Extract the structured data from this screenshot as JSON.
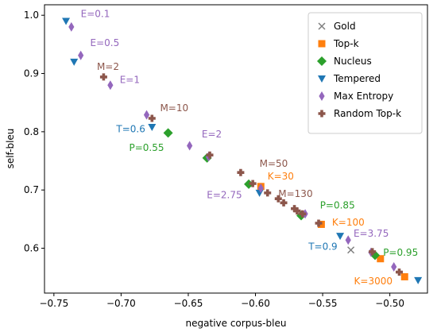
{
  "chart_data": {
    "type": "scatter",
    "xlabel": "negative corpus-bleu",
    "ylabel": "self-bleu",
    "xlim": [
      -0.757,
      -0.472
    ],
    "ylim": [
      0.523,
      1.018
    ],
    "xticks": [
      -0.75,
      -0.7,
      -0.65,
      -0.6,
      -0.55,
      -0.5
    ],
    "xtick_labels": [
      "−0.75",
      "−0.70",
      "−0.65",
      "−0.60",
      "−0.55",
      "−0.50"
    ],
    "yticks": [
      0.6,
      0.7,
      0.8,
      0.9,
      1.0
    ],
    "ytick_labels": [
      "0.6",
      "0.7",
      "0.8",
      "0.9",
      "1.0"
    ],
    "grid": false,
    "legend_position": "top-right",
    "series": [
      {
        "name": "Gold",
        "marker": "x",
        "color": "#7f7f7f",
        "points": [
          [
            -0.529,
            0.597
          ]
        ]
      },
      {
        "name": "Top-k",
        "marker": "square",
        "color": "#ff7f0e",
        "points": [
          [
            -0.596,
            0.706
          ],
          [
            -0.551,
            0.641
          ],
          [
            -0.507,
            0.582
          ],
          [
            -0.489,
            0.551
          ]
        ]
      },
      {
        "name": "Nucleus",
        "marker": "diamond",
        "color": "#2ca02c",
        "points": [
          [
            -0.665,
            0.798
          ],
          [
            -0.636,
            0.755
          ],
          [
            -0.605,
            0.71
          ],
          [
            -0.566,
            0.656
          ],
          [
            -0.511,
            0.588
          ]
        ]
      },
      {
        "name": "Tempered",
        "marker": "triangle-down",
        "color": "#1f77b4",
        "points": [
          [
            -0.741,
            0.99
          ],
          [
            -0.735,
            0.92
          ],
          [
            -0.677,
            0.808
          ],
          [
            -0.597,
            0.695
          ],
          [
            -0.537,
            0.621
          ],
          [
            -0.479,
            0.545
          ]
        ]
      },
      {
        "name": "Max Entropy",
        "marker": "thin-diamond",
        "color": "#9467bd",
        "points": [
          [
            -0.737,
            0.98
          ],
          [
            -0.73,
            0.931
          ],
          [
            -0.708,
            0.88
          ],
          [
            -0.681,
            0.829
          ],
          [
            -0.649,
            0.776
          ],
          [
            -0.635,
            0.757
          ],
          [
            -0.596,
            0.703
          ],
          [
            -0.563,
            0.659
          ],
          [
            -0.531,
            0.614
          ],
          [
            -0.514,
            0.593
          ],
          [
            -0.497,
            0.568
          ]
        ]
      },
      {
        "name": "Random Top-k",
        "marker": "plus",
        "color": "#8c564b",
        "points": [
          [
            -0.713,
            0.894
          ],
          [
            -0.677,
            0.823
          ],
          [
            -0.634,
            0.76
          ],
          [
            -0.611,
            0.73
          ],
          [
            -0.602,
            0.711
          ],
          [
            -0.591,
            0.695
          ],
          [
            -0.583,
            0.685
          ],
          [
            -0.579,
            0.678
          ],
          [
            -0.571,
            0.668
          ],
          [
            -0.569,
            0.664
          ],
          [
            -0.565,
            0.659
          ],
          [
            -0.553,
            0.643
          ],
          [
            -0.513,
            0.594
          ],
          [
            -0.493,
            0.559
          ]
        ]
      }
    ],
    "annotations": [
      {
        "text": "E=0.1",
        "x": -0.73,
        "y": 0.997,
        "color": "#9467bd",
        "anchor": "start"
      },
      {
        "text": "E=0.5",
        "x": -0.723,
        "y": 0.947,
        "color": "#9467bd",
        "anchor": "start"
      },
      {
        "text": "M=2",
        "x": -0.718,
        "y": 0.906,
        "color": "#8c564b",
        "anchor": "start"
      },
      {
        "text": "E=1",
        "x": -0.701,
        "y": 0.884,
        "color": "#9467bd",
        "anchor": "start"
      },
      {
        "text": "M=10",
        "x": -0.671,
        "y": 0.835,
        "color": "#8c564b",
        "anchor": "start"
      },
      {
        "text": "T=0.6",
        "x": -0.682,
        "y": 0.799,
        "color": "#1f77b4",
        "anchor": "end"
      },
      {
        "text": "P=0.55",
        "x": -0.668,
        "y": 0.767,
        "color": "#2ca02c",
        "anchor": "end"
      },
      {
        "text": "E=2",
        "x": -0.64,
        "y": 0.79,
        "color": "#9467bd",
        "anchor": "start"
      },
      {
        "text": "M=50",
        "x": -0.597,
        "y": 0.74,
        "color": "#8c564b",
        "anchor": "start"
      },
      {
        "text": "K=30",
        "x": -0.591,
        "y": 0.718,
        "color": "#ff7f0e",
        "anchor": "start"
      },
      {
        "text": "E=2.75",
        "x": -0.61,
        "y": 0.686,
        "color": "#9467bd",
        "anchor": "end"
      },
      {
        "text": "M=130",
        "x": -0.583,
        "y": 0.688,
        "color": "#8c564b",
        "anchor": "start"
      },
      {
        "text": "P=0.85",
        "x": -0.552,
        "y": 0.668,
        "color": "#2ca02c",
        "anchor": "start"
      },
      {
        "text": "K=100",
        "x": -0.543,
        "y": 0.639,
        "color": "#ff7f0e",
        "anchor": "start"
      },
      {
        "text": "E=3.75",
        "x": -0.527,
        "y": 0.62,
        "color": "#9467bd",
        "anchor": "start"
      },
      {
        "text": "T=0.9",
        "x": -0.539,
        "y": 0.597,
        "color": "#1f77b4",
        "anchor": "end"
      },
      {
        "text": "P=0.95",
        "x": -0.505,
        "y": 0.587,
        "color": "#2ca02c",
        "anchor": "start"
      },
      {
        "text": "K=3000",
        "x": -0.498,
        "y": 0.538,
        "color": "#ff7f0e",
        "anchor": "end"
      }
    ]
  }
}
